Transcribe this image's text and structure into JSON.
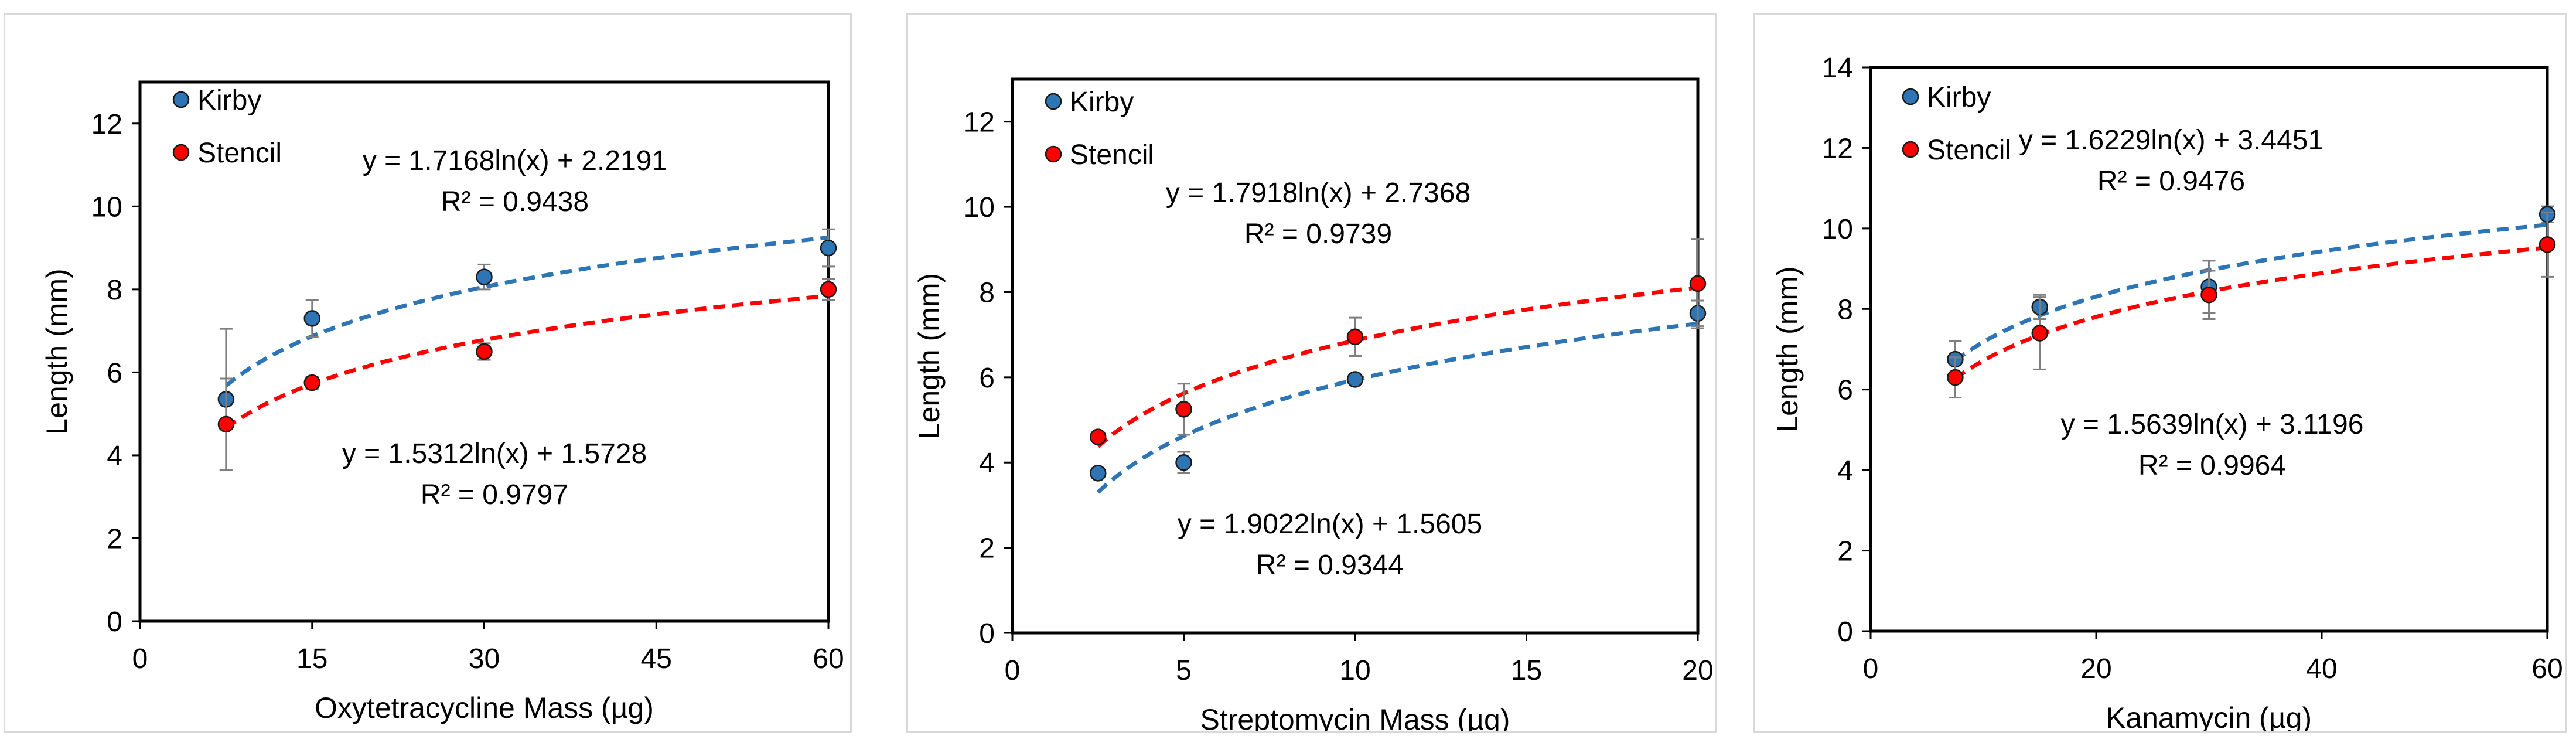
{
  "colors": {
    "kirby": "#2e75b6",
    "stencil": "#ff0000",
    "errorbar": "#7f7f7f",
    "frame": "#000000",
    "panel_border": "#d9d9d9"
  },
  "chart_data": [
    {
      "type": "scatter",
      "title": "",
      "xlabel": "Oxytetracycline Mass (µg)",
      "ylabel": "Length (mm)",
      "xlim": [
        0,
        60
      ],
      "ylim": [
        0,
        13
      ],
      "xticks": [
        0,
        15,
        30,
        45,
        60
      ],
      "yticks": [
        0,
        2,
        4,
        6,
        8,
        10,
        12
      ],
      "grid": false,
      "legend": "top-left",
      "series": [
        {
          "name": "Kirby",
          "color": "#2e75b6",
          "x": [
            7.5,
            15,
            30,
            60
          ],
          "y": [
            5.35,
            7.3,
            8.3,
            9.0
          ],
          "error": [
            1.7,
            0.45,
            0.3,
            0.45
          ],
          "trendline": {
            "type": "log",
            "a": 1.7168,
            "b": 2.2191,
            "equation": "y = 1.7168ln(x) + 2.2191",
            "r2": "R² = 0.9438"
          }
        },
        {
          "name": "Stencil",
          "color": "#ff0000",
          "x": [
            7.5,
            15,
            30,
            60
          ],
          "y": [
            4.75,
            5.75,
            6.5,
            8.0
          ],
          "error": [
            1.1,
            0.15,
            0.2,
            0.25
          ],
          "trendline": {
            "type": "log",
            "a": 1.5312,
            "b": 1.5728,
            "equation": "y = 1.5312ln(x) + 1.5728",
            "r2": "R² = 0.9797"
          }
        }
      ]
    },
    {
      "type": "scatter",
      "title": "",
      "xlabel": "Streptomycin Mass (µg)",
      "ylabel": "Length (mm)",
      "xlim": [
        0,
        20
      ],
      "ylim": [
        0,
        13
      ],
      "xticks": [
        0,
        5,
        10,
        15,
        20
      ],
      "yticks": [
        0,
        2,
        4,
        6,
        8,
        10,
        12
      ],
      "grid": false,
      "legend": "top-left",
      "series": [
        {
          "name": "Kirby",
          "color": "#2e75b6",
          "x": [
            2.5,
            5,
            10,
            20
          ],
          "y": [
            3.75,
            4.0,
            5.95,
            7.5
          ],
          "error": [
            0.12,
            0.25,
            0.1,
            0.3
          ],
          "trendline": {
            "type": "log",
            "a": 1.9022,
            "b": 1.5605,
            "equation": "y = 1.9022ln(x) + 1.5605",
            "r2": "R² = 0.9344"
          }
        },
        {
          "name": "Stencil",
          "color": "#ff0000",
          "x": [
            2.5,
            5,
            10,
            20
          ],
          "y": [
            4.6,
            5.25,
            6.95,
            8.2
          ],
          "error": [
            0.1,
            0.6,
            0.45,
            1.05
          ],
          "trendline": {
            "type": "log",
            "a": 1.7918,
            "b": 2.7368,
            "equation": "y = 1.7918ln(x) + 2.7368",
            "r2": "R² = 0.9739"
          }
        }
      ]
    },
    {
      "type": "scatter",
      "title": "",
      "xlabel": "Kanamycin (µg)",
      "ylabel": "Length (mm)",
      "xlim": [
        0,
        60
      ],
      "ylim": [
        0,
        14
      ],
      "xticks": [
        0,
        20,
        40,
        60
      ],
      "yticks": [
        0,
        2,
        4,
        6,
        8,
        10,
        12,
        14
      ],
      "grid": false,
      "legend": "top-left",
      "series": [
        {
          "name": "Kirby",
          "color": "#2e75b6",
          "x": [
            7.5,
            15,
            30,
            60
          ],
          "y": [
            6.75,
            8.05,
            8.55,
            10.35
          ],
          "error": [
            0.45,
            0.3,
            0.65,
            0.2
          ],
          "trendline": {
            "type": "log",
            "a": 1.6229,
            "b": 3.4451,
            "equation": "y = 1.6229ln(x) + 3.4451",
            "r2": "R² = 0.9476"
          }
        },
        {
          "name": "Stencil",
          "color": "#ff0000",
          "x": [
            7.5,
            15,
            30,
            60
          ],
          "y": [
            6.3,
            7.4,
            8.35,
            9.6
          ],
          "error": [
            0.5,
            0.9,
            0.6,
            0.8
          ],
          "trendline": {
            "type": "log",
            "a": 1.5639,
            "b": 3.1196,
            "equation": "y = 1.5639ln(x) + 3.1196",
            "r2": "R² = 0.9964"
          }
        }
      ]
    }
  ]
}
